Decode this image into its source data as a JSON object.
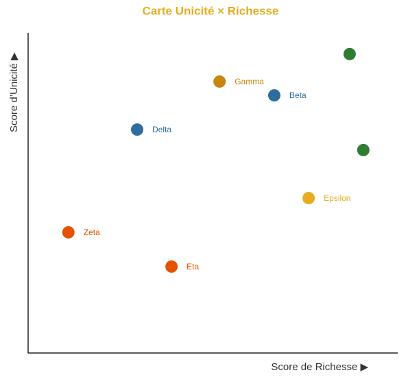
{
  "chart_data": {
    "type": "scatter",
    "title": "Carte Unicité × Richesse",
    "x_label": "Score de Richesse ▶",
    "y_label": "Score d’Unicité ▶",
    "x": [
      87,
      51.8,
      66.6,
      29.5,
      90.7,
      75.9,
      10.9,
      38.8
    ],
    "values": [
      93.4,
      84.8,
      80.5,
      69.8,
      63.4,
      48.4,
      37.7,
      27.0
    ],
    "point_labels": [
      null,
      "Gamma",
      "Beta",
      "Delta",
      null,
      "Epsilon",
      "Zeta",
      "Eta"
    ],
    "colors": [
      "#2e7d32",
      "#c8860a",
      "#2e6e9e",
      "#2e6e9e",
      "#2e7d32",
      "#e6ac1e",
      "#e65100",
      "#e65100"
    ],
    "title_color": "#e6ac1e",
    "xlim": [
      0,
      100
    ],
    "ylim": [
      0,
      100
    ]
  }
}
